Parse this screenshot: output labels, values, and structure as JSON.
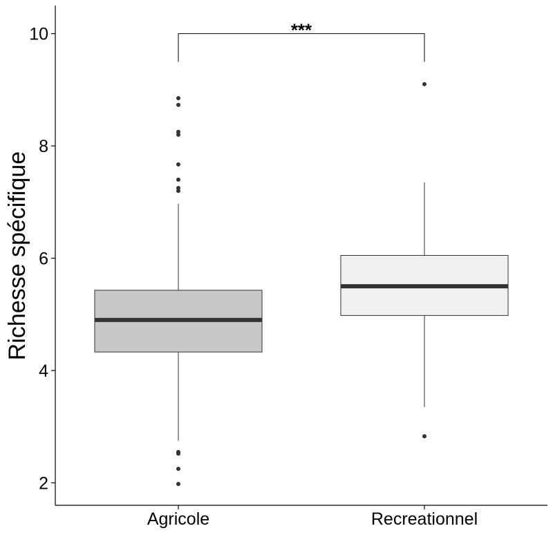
{
  "chart_data": {
    "type": "box",
    "title": "",
    "xlabel": "",
    "ylabel": "Richesse spécifique",
    "ylim": [
      1.6,
      10.5
    ],
    "yticks": [
      2,
      4,
      6,
      8,
      10
    ],
    "categories": [
      "Agricole",
      "Recreationnel"
    ],
    "boxes": [
      {
        "name": "Agricole",
        "whisker_low": 2.75,
        "q1": 4.33,
        "median": 4.9,
        "q3": 5.43,
        "whisker_high": 6.97,
        "outliers": [
          1.98,
          2.25,
          2.52,
          2.55,
          7.2,
          7.25,
          7.4,
          7.67,
          8.2,
          8.25,
          8.73,
          8.85
        ],
        "fill": "#c8c8c8"
      },
      {
        "name": "Recreationnel",
        "whisker_low": 3.35,
        "q1": 4.98,
        "median": 5.5,
        "q3": 6.05,
        "whisker_high": 7.35,
        "outliers": [
          2.83,
          9.1
        ],
        "fill": "#f0f0f0"
      }
    ],
    "significance": {
      "label": "***",
      "between": [
        "Agricole",
        "Recreationnel"
      ],
      "y": 10,
      "drop_to": 9.5
    },
    "grid": false,
    "legend": "none"
  }
}
